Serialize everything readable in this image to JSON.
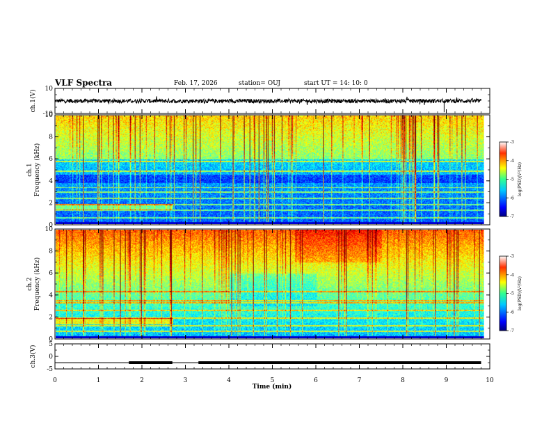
{
  "header": {
    "title": "VLF Spectra",
    "date": "Feb. 17, 2026",
    "station": "station= OUJ",
    "start_ut": "start  UT =   14: 10: 0"
  },
  "chart_data": [
    {
      "type": "line",
      "panel": "ch1-waveform",
      "ylabel": "ch.1(V)",
      "ylim": [
        -10,
        10
      ],
      "yticks": [
        -10,
        10
      ],
      "xlim": [
        0,
        10
      ],
      "series": [
        {
          "x": [
            0,
            9.8
          ],
          "y": [
            0,
            0
          ]
        }
      ],
      "spikes": [
        {
          "x": 8.95,
          "y": -9
        }
      ]
    },
    {
      "type": "heatmap",
      "panel": "ch1-spectrogram",
      "ylabel": "ch.1\nFrequency (kHz)",
      "xlim": [
        0,
        10
      ],
      "ylim": [
        0,
        10
      ],
      "yticks": [
        0,
        2,
        4,
        6,
        8,
        10
      ],
      "data_extent_min": 9.85,
      "colorbar": {
        "label": "log(PSD)(V²/Hz)",
        "range": [
          -7,
          -3
        ],
        "ticks": [
          -7,
          -6,
          -5,
          -4,
          -3
        ]
      }
    },
    {
      "type": "heatmap",
      "panel": "ch2-spectrogram",
      "ylabel": "ch.2\nFrequency (kHz)",
      "xlim": [
        0,
        10
      ],
      "ylim": [
        0,
        10
      ],
      "yticks": [
        0,
        2,
        4,
        6,
        8,
        10
      ],
      "data_extent_min": 9.85,
      "colorbar": {
        "label": "log(PSD)(V²/Hz)",
        "range": [
          -7,
          -3
        ],
        "ticks": [
          -7,
          -6,
          -5,
          -4,
          -3
        ]
      }
    },
    {
      "type": "line",
      "panel": "ch3-waveform",
      "ylabel": "ch.3(V)",
      "xlabel": "Time (min)",
      "ylim": [
        -5,
        5
      ],
      "yticks": [
        -5,
        0,
        5
      ],
      "xlim": [
        0,
        10
      ],
      "xticks": [
        0,
        1,
        2,
        3,
        4,
        5,
        6,
        7,
        8,
        9,
        10
      ],
      "series": [
        {
          "x": [
            0,
            9.8
          ],
          "y": [
            -2.5,
            -2.5
          ]
        }
      ],
      "thick_segments": [
        [
          1.7,
          2.7
        ],
        [
          3.3,
          9.8
        ]
      ]
    }
  ]
}
